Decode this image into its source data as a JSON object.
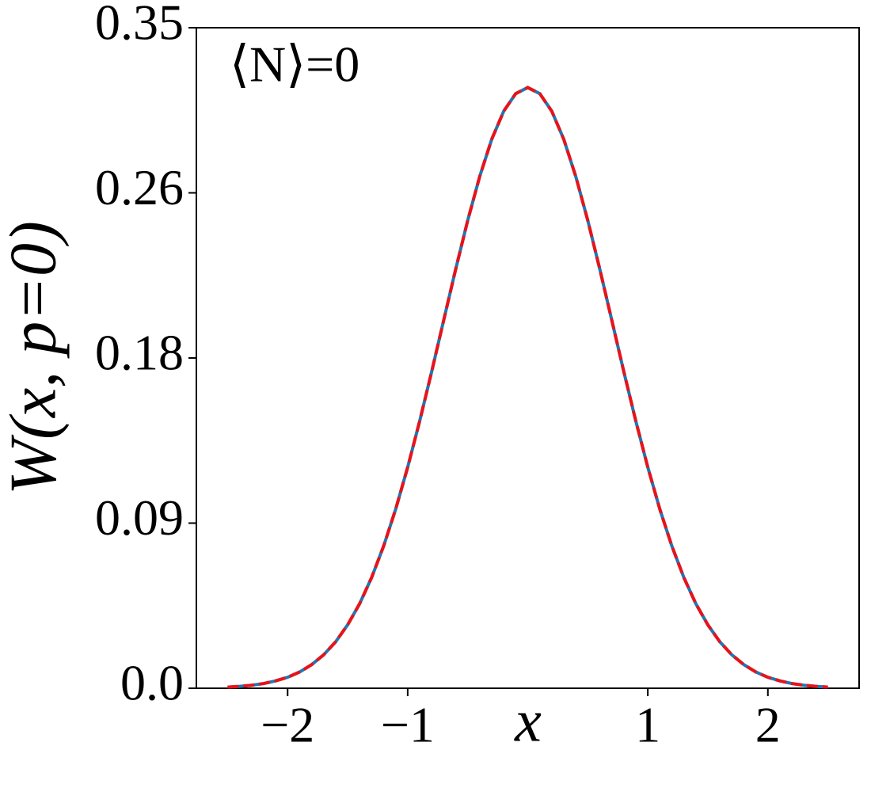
{
  "chart_data": {
    "type": "line",
    "annotation": "⟨N⟩=0",
    "x_label": "x",
    "y_label": "W(x, p=0)",
    "x": [
      -2.5,
      -2.4,
      -2.3,
      -2.2,
      -2.1,
      -2.0,
      -1.9,
      -1.8,
      -1.7,
      -1.6,
      -1.5,
      -1.4,
      -1.3,
      -1.2,
      -1.1,
      -1.0,
      -0.9,
      -0.8,
      -0.7,
      -0.6,
      -0.5,
      -0.4,
      -0.3,
      -0.2,
      -0.1,
      0,
      0.1,
      0.2,
      0.3,
      0.4,
      0.5,
      0.6,
      0.7,
      0.8,
      0.9,
      1.0,
      1.1,
      1.2,
      1.3,
      1.4,
      1.5,
      1.6,
      1.7,
      1.8,
      1.9,
      2.0,
      2.1,
      2.2,
      2.3,
      2.4,
      2.5
    ],
    "series": [
      {
        "color": "#1f77b4",
        "dashed": false,
        "values": [
          0.0006,
          0.001,
          0.0016,
          0.0025,
          0.0039,
          0.0058,
          0.0086,
          0.0125,
          0.0177,
          0.0246,
          0.0336,
          0.0448,
          0.0587,
          0.0754,
          0.0949,
          0.1171,
          0.1416,
          0.1678,
          0.195,
          0.2221,
          0.2479,
          0.2712,
          0.2909,
          0.3058,
          0.3151,
          0.3183,
          0.3151,
          0.3058,
          0.2909,
          0.2712,
          0.2479,
          0.2221,
          0.195,
          0.1678,
          0.1416,
          0.1171,
          0.0949,
          0.0754,
          0.0587,
          0.0448,
          0.0336,
          0.0246,
          0.0177,
          0.0125,
          0.0086,
          0.0058,
          0.0039,
          0.0025,
          0.0016,
          0.001,
          0.0006
        ]
      },
      {
        "color": "#e8131a",
        "dashed": true,
        "values": [
          0.0006,
          0.001,
          0.0016,
          0.0025,
          0.0039,
          0.0058,
          0.0086,
          0.0125,
          0.0177,
          0.0246,
          0.0336,
          0.0448,
          0.0587,
          0.0754,
          0.0949,
          0.1171,
          0.1416,
          0.1678,
          0.195,
          0.2221,
          0.2479,
          0.2712,
          0.2909,
          0.3058,
          0.3151,
          0.3183,
          0.3151,
          0.3058,
          0.2909,
          0.2712,
          0.2479,
          0.2221,
          0.195,
          0.1678,
          0.1416,
          0.1171,
          0.0949,
          0.0754,
          0.0587,
          0.0448,
          0.0336,
          0.0246,
          0.0177,
          0.0125,
          0.0086,
          0.0058,
          0.0039,
          0.0025,
          0.0016,
          0.001,
          0.0006
        ]
      }
    ],
    "xlim": [
      -2.76,
      2.76
    ],
    "xticks": [
      {
        "value": -2,
        "label": "−2"
      },
      {
        "value": -1,
        "label": "−1"
      },
      1,
      2
    ],
    "ylim": [
      0,
      0.35
    ],
    "yticks": [
      {
        "value": 0,
        "label": "0.0"
      },
      {
        "value": 0.0875,
        "label": "0.09"
      },
      {
        "value": 0.175,
        "label": "0.18"
      },
      {
        "value": 0.2625,
        "label": "0.26"
      },
      0.35
    ],
    "grid": false
  }
}
